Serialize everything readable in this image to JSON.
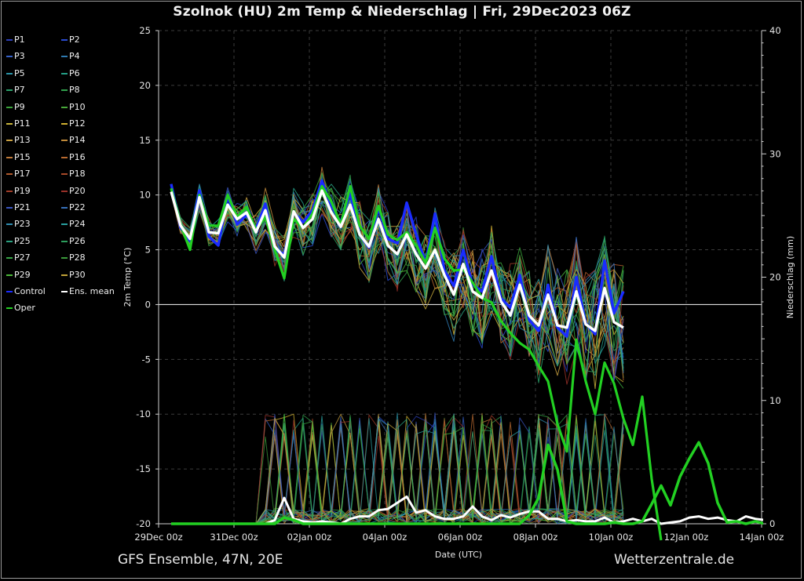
{
  "chart_data": {
    "type": "line",
    "title": "Szolnok  (HU)  2m Temp & Niederschlag | Fri, 29Dec2023 06Z",
    "ylabel": "2m Temp (°C)",
    "y2label": "Niederschlag (mm)",
    "xlabel": "Date (UTC)",
    "ylim": [
      -20,
      25
    ],
    "y2lim": [
      0,
      40
    ],
    "yticks": [
      25,
      20,
      15,
      10,
      5,
      0,
      -5,
      -10,
      -15,
      -20
    ],
    "y2ticks": [
      40,
      30,
      20,
      10,
      0
    ],
    "xticks": [
      "29Dec 00z",
      "31Dec 00z",
      "02Jan 00z",
      "04Jan 00z",
      "06Jan 00z",
      "08Jan 00z",
      "10Jan 00z",
      "12Jan 00z",
      "14Jan 00z"
    ],
    "x_range_days": [
      0,
      16
    ],
    "grid": true,
    "legend": {
      "position": "left",
      "entries": [
        {
          "name": "P1",
          "color": "#2c3fb8"
        },
        {
          "name": "P2",
          "color": "#2a4bd0"
        },
        {
          "name": "P3",
          "color": "#3460c8"
        },
        {
          "name": "P4",
          "color": "#2f7ab0"
        },
        {
          "name": "P5",
          "color": "#2a93a8"
        },
        {
          "name": "P6",
          "color": "#249e86"
        },
        {
          "name": "P7",
          "color": "#2aa06a"
        },
        {
          "name": "P8",
          "color": "#31a04c"
        },
        {
          "name": "P9",
          "color": "#3aa33a"
        },
        {
          "name": "P10",
          "color": "#48a83a"
        },
        {
          "name": "P11",
          "color": "#c8b43a"
        },
        {
          "name": "P12",
          "color": "#d0b030"
        },
        {
          "name": "P13",
          "color": "#c8a040"
        },
        {
          "name": "P14",
          "color": "#c08a3a"
        },
        {
          "name": "P15",
          "color": "#c07a38"
        },
        {
          "name": "P16",
          "color": "#b86a30"
        },
        {
          "name": "P17",
          "color": "#b05a2c"
        },
        {
          "name": "P18",
          "color": "#a84a28"
        },
        {
          "name": "P19",
          "color": "#a03c28"
        },
        {
          "name": "P20",
          "color": "#983028"
        },
        {
          "name": "P21",
          "color": "#3a55c0"
        },
        {
          "name": "P22",
          "color": "#3670b8"
        },
        {
          "name": "P23",
          "color": "#2f8cb0"
        },
        {
          "name": "P24",
          "color": "#28a0a0"
        },
        {
          "name": "P25",
          "color": "#2aa080"
        },
        {
          "name": "P26",
          "color": "#2c9e5c"
        },
        {
          "name": "P27",
          "color": "#36a446"
        },
        {
          "name": "P28",
          "color": "#3a9a3a"
        },
        {
          "name": "P29",
          "color": "#4ab838"
        },
        {
          "name": "P30",
          "color": "#c0a238"
        },
        {
          "name": "Control",
          "color": "#1a2cff"
        },
        {
          "name": "Ens. mean",
          "color": "#ffffff"
        },
        {
          "name": "Oper",
          "color": "#22d022"
        }
      ]
    },
    "series": [
      {
        "name": "Ens. mean",
        "kind": "temp",
        "color": "#ffffff",
        "values": [
          10.3,
          7.2,
          6.0,
          9.8,
          6.6,
          6.5,
          9.1,
          7.8,
          8.4,
          6.6,
          8.6,
          5.3,
          4.3,
          8.5,
          7.0,
          7.8,
          10.4,
          8.4,
          7.1,
          9.1,
          6.4,
          5.3,
          7.8,
          5.4,
          4.6,
          6.4,
          4.6,
          3.3,
          5.0,
          2.7,
          0.9,
          3.7,
          1.2,
          0.6,
          3.1,
          0.3,
          -1.0,
          1.8,
          -1.0,
          -1.9,
          0.9,
          -1.9,
          -2.1,
          1.2,
          -1.8,
          -2.4,
          1.5,
          -1.6,
          -2.1
        ]
      },
      {
        "name": "Control",
        "kind": "temp",
        "color": "#1a2cff",
        "values": [
          11.0,
          7.0,
          5.8,
          10.4,
          6.2,
          5.4,
          9.9,
          7.3,
          8.2,
          6.9,
          9.2,
          5.0,
          4.6,
          8.4,
          7.5,
          8.6,
          11.3,
          9.0,
          7.5,
          10.2,
          6.4,
          5.2,
          8.8,
          6.0,
          5.6,
          9.3,
          6.4,
          3.8,
          8.3,
          3.1,
          1.7,
          5.0,
          1.8,
          1.2,
          4.4,
          0.6,
          -0.3,
          2.7,
          -1.4,
          -2.4,
          1.8,
          -2.1,
          -2.9,
          2.5,
          -1.7,
          -2.7,
          4.0,
          -0.8,
          1.2
        ]
      },
      {
        "name": "Oper",
        "kind": "temp",
        "color": "#22d022",
        "values": [
          10.6,
          7.3,
          5.0,
          10.0,
          7.2,
          7.2,
          10.0,
          8.0,
          8.9,
          6.8,
          8.0,
          5.0,
          2.4,
          7.8,
          7.0,
          8.3,
          10.8,
          9.4,
          7.3,
          10.8,
          7.2,
          6.0,
          9.0,
          6.4,
          5.9,
          6.6,
          5.4,
          3.8,
          7.0,
          4.2,
          3.1,
          3.2,
          2.0,
          0.6,
          0.2,
          -1.5,
          -2.6,
          -3.5,
          -4.1,
          -5.6,
          -7.0,
          -10.9,
          -13.4,
          -3.2,
          -7.0,
          -10.0,
          -5.3,
          -7.2,
          -10.4,
          -12.8,
          -8.4,
          -15.9,
          -21.5
        ]
      },
      {
        "name": "Ens. mean precip",
        "kind": "precip",
        "color": "#ffffff",
        "values": [
          0,
          0,
          0,
          0,
          0,
          0,
          0,
          0,
          0,
          0,
          0,
          0.3,
          2.1,
          0.4,
          0.2,
          0.1,
          0.2,
          0.1,
          0.0,
          0.4,
          0.6,
          0.6,
          1.1,
          1.2,
          1.7,
          2.2,
          0.9,
          1.1,
          0.6,
          0.4,
          0.4,
          0.6,
          1.4,
          0.6,
          0.3,
          0.7,
          0.5,
          0.8,
          1.0,
          1.0,
          0.4,
          0.4,
          0.2,
          0.3,
          0.2,
          0.2,
          0.5,
          0.1,
          0.2,
          0.4,
          0.2,
          0.4,
          0.0,
          0.1,
          0.2,
          0.5,
          0.6,
          0.4,
          0.5,
          0.3,
          0.2,
          0.6,
          0.4,
          0.3,
          0.3,
          0.4
        ]
      },
      {
        "name": "Oper precip",
        "kind": "precip",
        "color": "#22d022",
        "values": [
          0,
          0,
          0,
          0,
          0,
          0,
          0,
          0,
          0,
          0,
          0,
          0,
          0.5,
          0.3,
          0.0,
          0.0,
          0,
          0,
          0,
          0,
          0,
          0,
          0,
          0,
          0,
          0,
          0,
          0,
          0,
          0,
          0,
          0,
          0,
          0,
          0,
          0,
          0,
          0,
          0.7,
          2.1,
          6.4,
          4.4,
          0.2,
          0,
          0,
          0,
          0,
          0.1,
          0,
          0,
          0.2,
          1.6,
          3.1,
          1.5,
          3.8,
          5.3,
          6.6,
          4.9,
          1.7,
          0.1,
          0.2,
          0,
          0.2,
          0,
          0.2
        ]
      }
    ],
    "ensemble_note": "P1–P30 members plotted as thin coloured spaghetti lines around the ensemble mean"
  },
  "footer": {
    "left": "GFS Ensemble, 47N, 20E",
    "right": "Wetterzentrale.de"
  }
}
